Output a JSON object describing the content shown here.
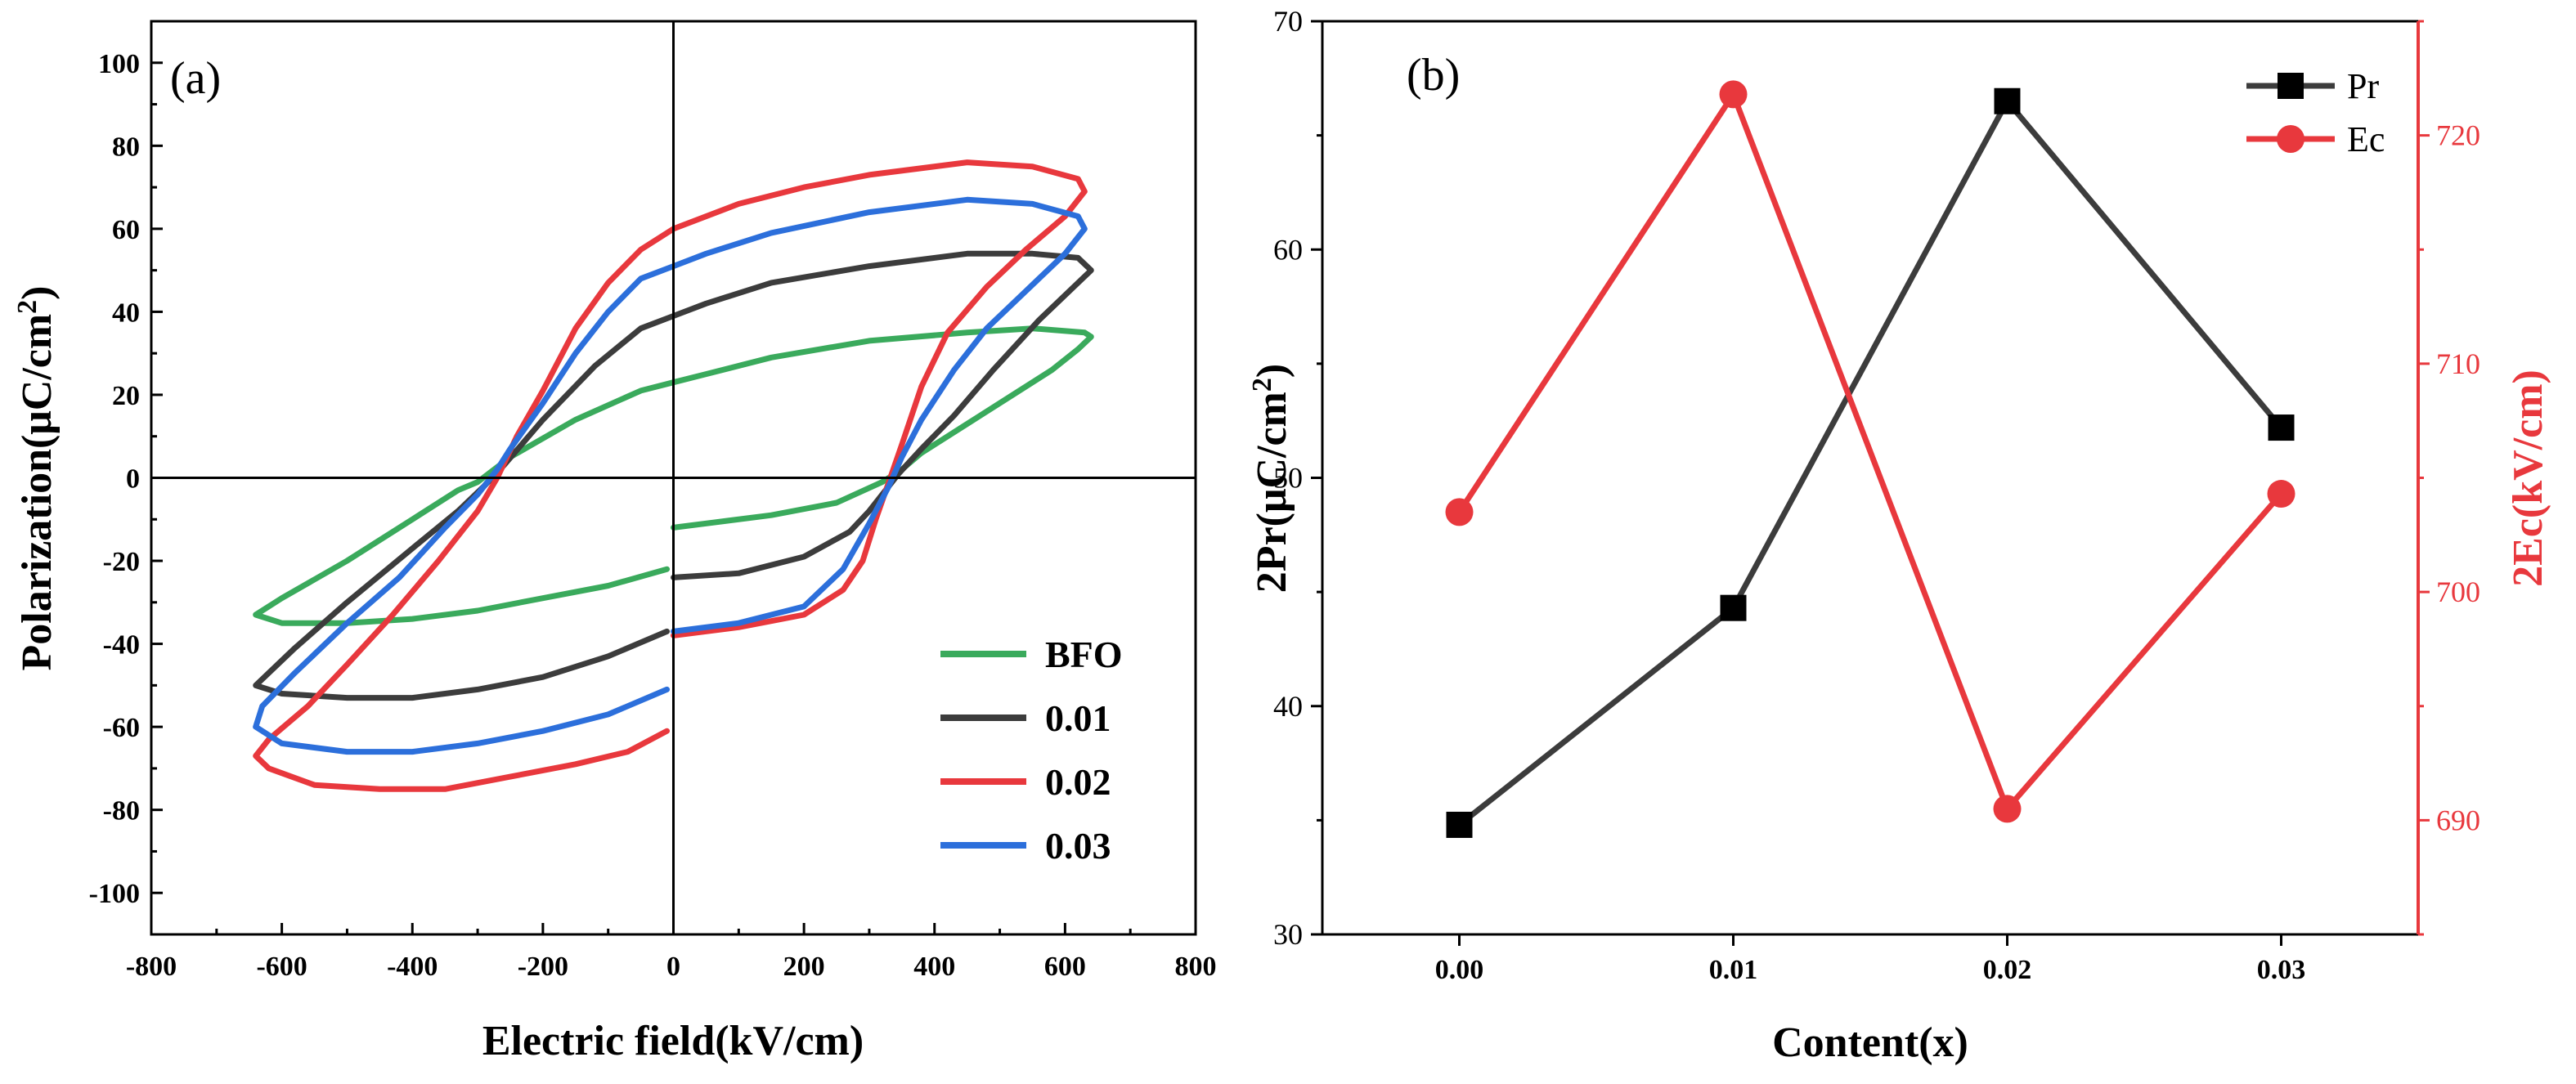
{
  "chart_data": [
    {
      "panel": "(a)",
      "type": "line",
      "xlabel": "Electric field(kV/cm)",
      "ylabel": "Polarization(μC/cm²)",
      "xlim": [
        -800,
        800
      ],
      "ylim": [
        -110,
        110
      ],
      "xticks": [
        -800,
        -600,
        -400,
        -200,
        0,
        200,
        400,
        600,
        800
      ],
      "yticks": [
        -100,
        -80,
        -60,
        -40,
        -20,
        0,
        20,
        40,
        60,
        80,
        100
      ],
      "legend": [
        "BFO",
        "0.01",
        "0.02",
        "0.03"
      ],
      "legend_position": "bottom-right",
      "grid": false,
      "series": [
        {
          "name": "BFO",
          "color": "#3aaa5c",
          "points": [
            [
              0,
              -12
            ],
            [
              150,
              -9
            ],
            [
              250,
              -6
            ],
            [
              320,
              -1
            ],
            [
              350,
              2
            ],
            [
              380,
              6
            ],
            [
              450,
              13
            ],
            [
              520,
              20
            ],
            [
              580,
              26
            ],
            [
              620,
              31
            ],
            [
              640,
              34
            ],
            [
              630,
              35
            ],
            [
              550,
              36
            ],
            [
              450,
              35
            ],
            [
              300,
              33
            ],
            [
              150,
              29
            ],
            [
              50,
              25
            ],
            [
              0,
              23
            ],
            [
              -50,
              21
            ],
            [
              -150,
              14
            ],
            [
              -250,
              5
            ],
            [
              -300,
              -1
            ],
            [
              -330,
              -3
            ],
            [
              -400,
              -10
            ],
            [
              -500,
              -20
            ],
            [
              -600,
              -29
            ],
            [
              -640,
              -33
            ],
            [
              -600,
              -35
            ],
            [
              -500,
              -35
            ],
            [
              -400,
              -34
            ],
            [
              -300,
              -32
            ],
            [
              -200,
              -29
            ],
            [
              -100,
              -26
            ],
            [
              -10,
              -22
            ]
          ]
        },
        {
          "name": "0.01",
          "color": "#3c3c3c",
          "points": [
            [
              0,
              -24
            ],
            [
              100,
              -23
            ],
            [
              200,
              -19
            ],
            [
              270,
              -13
            ],
            [
              300,
              -8
            ],
            [
              330,
              -2
            ],
            [
              345,
              1
            ],
            [
              380,
              7
            ],
            [
              430,
              15
            ],
            [
              490,
              26
            ],
            [
              560,
              38
            ],
            [
              620,
              47
            ],
            [
              640,
              50
            ],
            [
              620,
              53
            ],
            [
              550,
              54
            ],
            [
              450,
              54
            ],
            [
              300,
              51
            ],
            [
              150,
              47
            ],
            [
              50,
              42
            ],
            [
              0,
              39
            ],
            [
              -50,
              36
            ],
            [
              -120,
              27
            ],
            [
              -200,
              14
            ],
            [
              -260,
              3
            ],
            [
              -290,
              -2
            ],
            [
              -330,
              -8
            ],
            [
              -400,
              -17
            ],
            [
              -500,
              -30
            ],
            [
              -580,
              -41
            ],
            [
              -640,
              -50
            ],
            [
              -600,
              -52
            ],
            [
              -500,
              -53
            ],
            [
              -400,
              -53
            ],
            [
              -300,
              -51
            ],
            [
              -200,
              -48
            ],
            [
              -100,
              -43
            ],
            [
              -10,
              -37
            ]
          ]
        },
        {
          "name": "0.02",
          "color": "#e8383d",
          "points": [
            [
              0,
              -38
            ],
            [
              100,
              -36
            ],
            [
              200,
              -33
            ],
            [
              260,
              -27
            ],
            [
              290,
              -20
            ],
            [
              310,
              -10
            ],
            [
              330,
              -1
            ],
            [
              350,
              8
            ],
            [
              380,
              22
            ],
            [
              420,
              35
            ],
            [
              480,
              46
            ],
            [
              540,
              55
            ],
            [
              600,
              63
            ],
            [
              630,
              69
            ],
            [
              620,
              72
            ],
            [
              550,
              75
            ],
            [
              450,
              76
            ],
            [
              300,
              73
            ],
            [
              200,
              70
            ],
            [
              100,
              66
            ],
            [
              0,
              60
            ],
            [
              -50,
              55
            ],
            [
              -100,
              47
            ],
            [
              -150,
              36
            ],
            [
              -200,
              21
            ],
            [
              -240,
              10
            ],
            [
              -270,
              0
            ],
            [
              -300,
              -8
            ],
            [
              -360,
              -20
            ],
            [
              -430,
              -33
            ],
            [
              -500,
              -45
            ],
            [
              -560,
              -55
            ],
            [
              -620,
              -63
            ],
            [
              -640,
              -67
            ],
            [
              -620,
              -70
            ],
            [
              -550,
              -74
            ],
            [
              -450,
              -75
            ],
            [
              -350,
              -75
            ],
            [
              -250,
              -72
            ],
            [
              -150,
              -69
            ],
            [
              -70,
              -66
            ],
            [
              -10,
              -61
            ]
          ]
        },
        {
          "name": "0.03",
          "color": "#2c6fdb",
          "points": [
            [
              0,
              -37
            ],
            [
              100,
              -35
            ],
            [
              200,
              -31
            ],
            [
              260,
              -22
            ],
            [
              300,
              -11
            ],
            [
              330,
              -2
            ],
            [
              350,
              5
            ],
            [
              380,
              14
            ],
            [
              430,
              26
            ],
            [
              480,
              36
            ],
            [
              540,
              45
            ],
            [
              600,
              54
            ],
            [
              630,
              60
            ],
            [
              620,
              63
            ],
            [
              550,
              66
            ],
            [
              450,
              67
            ],
            [
              300,
              64
            ],
            [
              150,
              59
            ],
            [
              50,
              54
            ],
            [
              0,
              51
            ],
            [
              -50,
              48
            ],
            [
              -100,
              40
            ],
            [
              -150,
              30
            ],
            [
              -200,
              18
            ],
            [
              -250,
              7
            ],
            [
              -270,
              2
            ],
            [
              -300,
              -4
            ],
            [
              -350,
              -12
            ],
            [
              -420,
              -24
            ],
            [
              -500,
              -35
            ],
            [
              -580,
              -47
            ],
            [
              -630,
              -55
            ],
            [
              -640,
              -60
            ],
            [
              -600,
              -64
            ],
            [
              -500,
              -66
            ],
            [
              -400,
              -66
            ],
            [
              -300,
              -64
            ],
            [
              -200,
              -61
            ],
            [
              -100,
              -57
            ],
            [
              -10,
              -51
            ]
          ]
        }
      ]
    },
    {
      "panel": "(b)",
      "type": "line",
      "xlabel": "Content(x)",
      "ylabel": "2Pr(μC/cm²)",
      "ylabel_right": "2Ec(kV/cm)",
      "categories": [
        "0.00",
        "0.01",
        "0.02",
        "0.03"
      ],
      "xlim": [
        -0.005,
        0.035
      ],
      "ylim": [
        30,
        70
      ],
      "ylim_right": [
        685,
        725
      ],
      "yticks": [
        30,
        40,
        50,
        60,
        70
      ],
      "yticks_right": [
        690,
        700,
        710,
        720
      ],
      "legend": [
        "Pr",
        "Ec"
      ],
      "legend_position": "top-right",
      "grid": false,
      "series": [
        {
          "name": "Pr",
          "axis": "left",
          "color": "#3c3c3c",
          "marker": "square",
          "x": [
            0.0,
            0.01,
            0.02,
            0.03
          ],
          "values": [
            34.8,
            44.3,
            66.5,
            52.2
          ]
        },
        {
          "name": "Ec",
          "axis": "right",
          "color": "#e8383d",
          "marker": "circle",
          "x": [
            0.0,
            0.01,
            0.02,
            0.03
          ],
          "values": [
            703.5,
            721.8,
            690.5,
            704.3
          ]
        }
      ]
    }
  ]
}
